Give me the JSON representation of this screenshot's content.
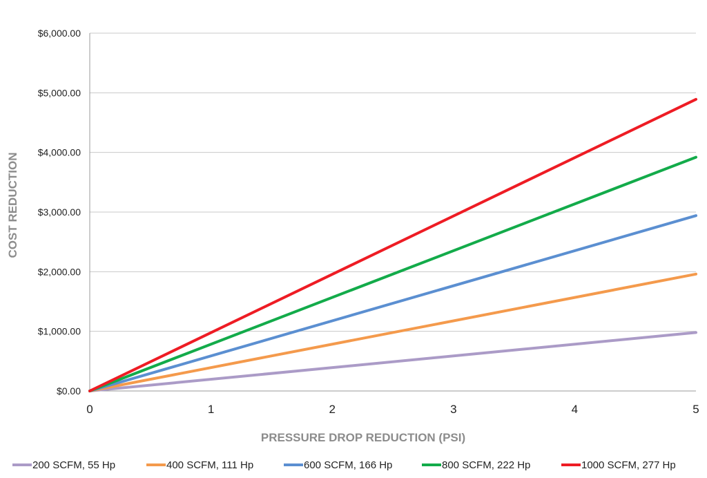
{
  "chart_data": {
    "type": "line",
    "title": "",
    "xlabel": "PRESSURE DROP REDUCTION (PSI)",
    "ylabel": "COST REDUCTION",
    "x": [
      0,
      5
    ],
    "xlim": [
      0,
      5
    ],
    "ylim": [
      0,
      6000
    ],
    "x_ticks": [
      "0",
      "1",
      "2",
      "3",
      "4",
      "5"
    ],
    "y_ticks": [
      "$0.00",
      "$1,000.00",
      "$2,000.00",
      "$3,000.00",
      "$4,000.00",
      "$5,000.00",
      "$6,000.00"
    ],
    "grid": "horizontal",
    "legend_position": "bottom",
    "series": [
      {
        "name": "200 SCFM, 55 Hp",
        "color": "#ab9bc7",
        "values": [
          0,
          980
        ]
      },
      {
        "name": "400 SCFM, 111 Hp",
        "color": "#f49a4c",
        "values": [
          0,
          1960
        ]
      },
      {
        "name": "600 SCFM, 166 Hp",
        "color": "#5b8fd1",
        "values": [
          0,
          2940
        ]
      },
      {
        "name": "800 SCFM, 222 Hp",
        "color": "#13ab4a",
        "values": [
          0,
          3920
        ]
      },
      {
        "name": "1000 SCFM, 277 Hp",
        "color": "#ee1c24",
        "values": [
          0,
          4890
        ]
      }
    ]
  }
}
